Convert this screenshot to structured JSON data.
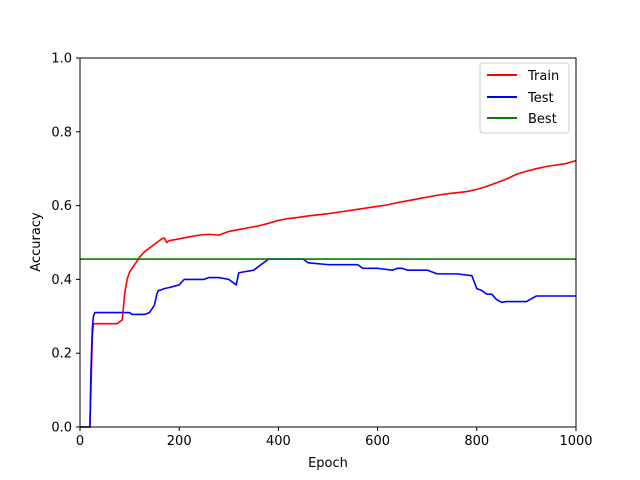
{
  "chart_data": {
    "type": "line",
    "xlabel": "Epoch",
    "ylabel": "Accuracy",
    "xlim": [
      0,
      1000
    ],
    "ylim": [
      0.0,
      1.0
    ],
    "xticks": [
      "0",
      "200",
      "400",
      "600",
      "800",
      "1000"
    ],
    "yticks": [
      "0.0",
      "0.2",
      "0.4",
      "0.6",
      "0.8",
      "1.0"
    ],
    "grid": false,
    "legend_position": "top-right",
    "series": [
      {
        "name": "Train",
        "color": "#ff0000",
        "x": [
          0,
          20,
          22,
          25,
          27,
          30,
          40,
          60,
          75,
          85,
          88,
          90,
          95,
          100,
          110,
          120,
          130,
          140,
          150,
          160,
          165,
          170,
          175,
          180,
          200,
          220,
          240,
          260,
          280,
          300,
          320,
          340,
          360,
          380,
          400,
          420,
          440,
          460,
          480,
          500,
          520,
          540,
          560,
          580,
          600,
          620,
          640,
          660,
          680,
          700,
          720,
          740,
          760,
          780,
          800,
          820,
          840,
          860,
          880,
          900,
          920,
          940,
          960,
          980,
          1000
        ],
        "y": [
          0.0,
          0.0,
          0.1,
          0.25,
          0.28,
          0.28,
          0.28,
          0.28,
          0.28,
          0.29,
          0.33,
          0.36,
          0.4,
          0.42,
          0.44,
          0.46,
          0.475,
          0.485,
          0.495,
          0.505,
          0.51,
          0.512,
          0.5,
          0.505,
          0.51,
          0.515,
          0.52,
          0.522,
          0.52,
          0.53,
          0.535,
          0.54,
          0.545,
          0.552,
          0.56,
          0.565,
          0.568,
          0.572,
          0.575,
          0.578,
          0.582,
          0.586,
          0.59,
          0.594,
          0.598,
          0.602,
          0.608,
          0.613,
          0.618,
          0.623,
          0.628,
          0.632,
          0.635,
          0.638,
          0.644,
          0.652,
          0.662,
          0.672,
          0.685,
          0.693,
          0.7,
          0.706,
          0.71,
          0.714,
          0.722
        ]
      },
      {
        "name": "Test",
        "color": "#0000ff",
        "x": [
          0,
          20,
          22,
          25,
          27,
          30,
          35,
          40,
          80,
          100,
          105,
          110,
          130,
          140,
          145,
          150,
          155,
          158,
          160,
          170,
          180,
          200,
          210,
          240,
          250,
          260,
          270,
          280,
          300,
          310,
          315,
          320,
          350,
          380,
          400,
          430,
          450,
          460,
          500,
          560,
          570,
          600,
          630,
          640,
          650,
          660,
          700,
          720,
          760,
          790,
          800,
          810,
          820,
          830,
          840,
          850,
          860,
          900,
          920,
          1000
        ],
        "y": [
          0.0,
          0.0,
          0.15,
          0.27,
          0.3,
          0.31,
          0.31,
          0.31,
          0.31,
          0.31,
          0.305,
          0.305,
          0.305,
          0.31,
          0.32,
          0.33,
          0.36,
          0.37,
          0.37,
          0.375,
          0.378,
          0.385,
          0.4,
          0.4,
          0.4,
          0.405,
          0.405,
          0.405,
          0.4,
          0.39,
          0.385,
          0.418,
          0.425,
          0.455,
          0.455,
          0.455,
          0.455,
          0.445,
          0.44,
          0.44,
          0.43,
          0.43,
          0.425,
          0.43,
          0.43,
          0.425,
          0.425,
          0.415,
          0.415,
          0.41,
          0.375,
          0.37,
          0.36,
          0.36,
          0.345,
          0.338,
          0.34,
          0.34,
          0.355,
          0.355
        ]
      },
      {
        "name": "Best",
        "color": "#008000",
        "x": [
          0,
          1000
        ],
        "y": [
          0.455,
          0.455
        ]
      }
    ]
  }
}
